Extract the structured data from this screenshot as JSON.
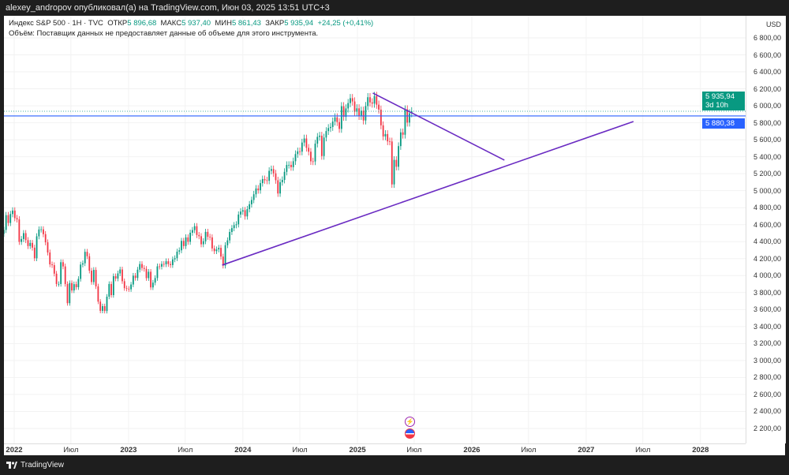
{
  "header": {
    "title": "alexey_andropov опубликовал(а) на TradingView.com, Июн 03, 2025 13:51 UTC+3"
  },
  "legend": {
    "symbol": "Индекс S&P 500 · 1Н · TVC",
    "open_label": "ОТКР",
    "open": "5 896,68",
    "high_label": "МАКС",
    "high": "5 937,40",
    "low_label": "МИН",
    "low": "5 861,43",
    "close_label": "ЗАКР",
    "close": "5 935,94",
    "change": "+24,25 (+0,41%)",
    "volume_note": "Объём: Поставщик данных не предоставляет данные об объеме для этого инструмента."
  },
  "price_axis": {
    "currency": "USD",
    "labels": [
      "6 800,00",
      "6 600,00",
      "6 400,00",
      "6 200,00",
      "6 000,00",
      "5 800,00",
      "5 600,00",
      "5 400,00",
      "5 200,00",
      "5 000,00",
      "4 800,00",
      "4 600,00",
      "4 400,00",
      "4 200,00",
      "4 000,00",
      "3 800,00",
      "3 600,00",
      "3 400,00",
      "3 200,00",
      "3 000,00",
      "2 800,00",
      "2 600,00",
      "2 400,00",
      "2 200,00"
    ],
    "current_price": "5 935,94",
    "countdown": "3d 10h",
    "hline_price": "5 880,38"
  },
  "time_axis": [
    {
      "label": "2022",
      "year": true
    },
    {
      "label": "Июл"
    },
    {
      "label": "2023",
      "year": true
    },
    {
      "label": "Июл"
    },
    {
      "label": "2024",
      "year": true
    },
    {
      "label": "Июл"
    },
    {
      "label": "2025",
      "year": true
    },
    {
      "label": "Июл"
    },
    {
      "label": "2026",
      "year": true
    },
    {
      "label": "Июл"
    },
    {
      "label": "2027",
      "year": true
    },
    {
      "label": "Июл"
    },
    {
      "label": "2028",
      "year": true
    }
  ],
  "colors": {
    "up": "#089981",
    "down": "#f23645",
    "hline": "#2962ff",
    "trendline": "#6a2bc2"
  },
  "chart_data": {
    "type": "candlestick",
    "interval": "weekly",
    "start_week": "2021-11-29",
    "current_price": 5935.94,
    "hline": 5880.38,
    "closes": [
      4538,
      4712,
      4620,
      4725,
      4766,
      4677,
      4662,
      4397,
      4431,
      4500,
      4418,
      4348,
      4385,
      4329,
      4204,
      4463,
      4543,
      4545,
      4488,
      4392,
      4272,
      4132,
      4123,
      4023,
      3901,
      3901,
      4158,
      4108,
      3901,
      3675,
      3912,
      3825,
      3899,
      3863,
      3961,
      4130,
      4145,
      4280,
      4228,
      4058,
      3924,
      4067,
      3873,
      3693,
      3585,
      3640,
      3583,
      3752,
      3901,
      3770,
      3993,
      3965,
      4026,
      4072,
      3934,
      3852,
      3845,
      3839,
      3895,
      3999,
      3972,
      4070,
      4136,
      4090,
      4079,
      3970,
      4045,
      3861,
      3917,
      3971,
      4109,
      4105,
      4137,
      4133,
      4169,
      4136,
      4124,
      4191,
      4205,
      4282,
      4298,
      4409,
      4348,
      4450,
      4398,
      4505,
      4536,
      4582,
      4478,
      4464,
      4369,
      4405,
      4515,
      4457,
      4450,
      4320,
      4288,
      4308,
      4327,
      4224,
      4117,
      4358,
      4415,
      4514,
      4559,
      4594,
      4604,
      4719,
      4754,
      4770,
      4697,
      4783,
      4840,
      4891,
      4958,
      5026,
      5005,
      5089,
      5137,
      5123,
      5117,
      5234,
      5254,
      5204,
      5123,
      4967,
      5100,
      5127,
      5222,
      5303,
      5304,
      5277,
      5347,
      5431,
      5464,
      5460,
      5567,
      5615,
      5505,
      5459,
      5346,
      5344,
      5554,
      5634,
      5648,
      5408,
      5626,
      5702,
      5738,
      5751,
      5815,
      5864,
      5808,
      5728,
      5995,
      5870,
      5969,
      6032,
      6090,
      6051,
      5930,
      5970,
      5881,
      5942,
      5827,
      5997,
      6101,
      6040,
      6026,
      6115,
      6013,
      5955,
      5770,
      5639,
      5667,
      5581,
      5580,
      5074,
      5363,
      5282,
      5525,
      5687,
      5659,
      5958,
      5802,
      5912,
      5935.94
    ],
    "trendlines": [
      {
        "from": {
          "date": "2023-10-27",
          "price": 4124
        },
        "to": {
          "date": "2027-06-01",
          "price": 5815
        }
      },
      {
        "from": {
          "date": "2025-02-19",
          "price": 6150
        },
        "to": {
          "date": "2026-04-15",
          "price": 5360
        }
      }
    ],
    "ylim": [
      2100,
      6900
    ]
  },
  "footer": {
    "brand": "TradingView"
  }
}
